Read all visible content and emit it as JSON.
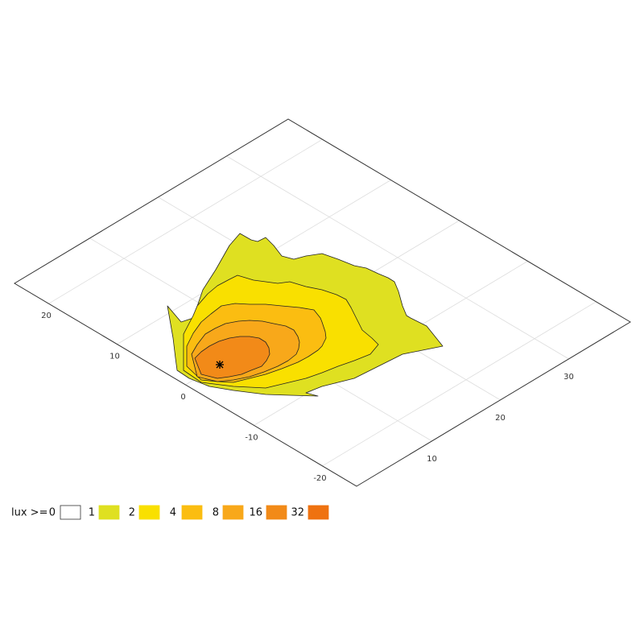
{
  "chart_data": {
    "type": "contour",
    "legend_title": "lux >=",
    "levels": [
      0,
      1,
      2,
      4,
      8,
      16,
      32
    ],
    "colors": [
      "#ffffff",
      "#dfe021",
      "#f9e000",
      "#fbbd11",
      "#f8a81a",
      "#f28a18",
      "#ef7210"
    ],
    "xlim": [
      -1,
      39
    ],
    "ylim": [
      -25,
      25
    ],
    "xticks": [
      10,
      20,
      30
    ],
    "yticks": [
      -20,
      -10,
      0,
      10,
      20
    ],
    "grid": true
  }
}
